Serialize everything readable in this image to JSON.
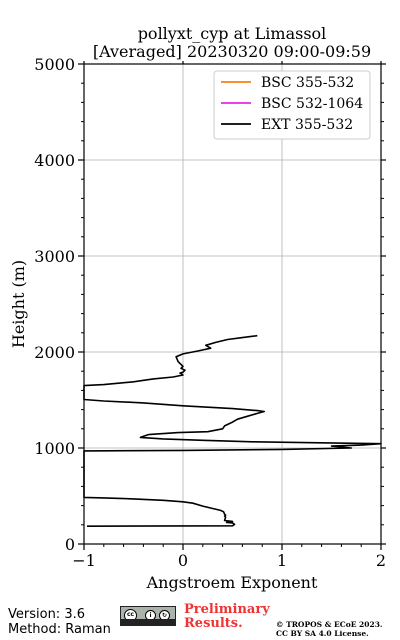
{
  "chart_data": {
    "type": "line",
    "title": "pollyxt_cyp at Limassol",
    "subtitle": "[Averaged] 20230320 09:00-09:59",
    "xlabel": "Angstroem Exponent",
    "ylabel": "Height (m)",
    "xlim": [
      -1,
      2
    ],
    "ylim": [
      0,
      5000
    ],
    "xticks": [
      "−1",
      "0",
      "1",
      "2"
    ],
    "yticks": [
      "0",
      "1000",
      "2000",
      "3000",
      "4000",
      "5000"
    ],
    "grid": true,
    "legend_position": "top-right",
    "series": [
      {
        "name": "BSC 355-532",
        "color": "#ff7f0e",
        "points": []
      },
      {
        "name": "BSC 532-1064",
        "color": "#e826e8",
        "points": []
      },
      {
        "name": "EXT 355-532",
        "color": "#000000",
        "points": [
          [
            -0.97,
            185
          ],
          [
            0.5,
            190
          ],
          [
            0.52,
            205
          ],
          [
            0.5,
            220
          ],
          [
            0.44,
            225
          ],
          [
            0.5,
            235
          ],
          [
            0.42,
            245
          ],
          [
            0.43,
            280
          ],
          [
            0.42,
            290
          ],
          [
            0.43,
            300
          ],
          [
            0.42,
            310
          ],
          [
            0.41,
            335
          ],
          [
            0.38,
            350
          ],
          [
            0.3,
            370
          ],
          [
            0.2,
            395
          ],
          [
            0.1,
            425
          ],
          [
            0.0,
            440
          ],
          [
            -0.2,
            455
          ],
          [
            -0.5,
            470
          ],
          [
            -0.8,
            480
          ],
          [
            -1.0,
            485
          ],
          [
            -1.0,
            970
          ],
          [
            0.0,
            975
          ],
          [
            1.0,
            985
          ],
          [
            1.7,
            1000
          ],
          [
            1.5,
            1020
          ],
          [
            1.8,
            1030
          ],
          [
            2.0,
            1045
          ],
          [
            1.3,
            1055
          ],
          [
            0.7,
            1065
          ],
          [
            0.2,
            1080
          ],
          [
            -0.2,
            1095
          ],
          [
            -0.43,
            1110
          ],
          [
            -0.35,
            1140
          ],
          [
            -0.05,
            1160
          ],
          [
            0.25,
            1170
          ],
          [
            0.4,
            1200
          ],
          [
            0.42,
            1230
          ],
          [
            0.5,
            1270
          ],
          [
            0.55,
            1300
          ],
          [
            0.65,
            1330
          ],
          [
            0.75,
            1360
          ],
          [
            0.82,
            1380
          ],
          [
            0.75,
            1390
          ],
          [
            0.5,
            1410
          ],
          [
            0.0,
            1440
          ],
          [
            -0.4,
            1470
          ],
          [
            -0.8,
            1490
          ],
          [
            -1.0,
            1505
          ],
          [
            -1.0,
            1650
          ],
          [
            -0.8,
            1660
          ],
          [
            -0.5,
            1690
          ],
          [
            -0.3,
            1720
          ],
          [
            -0.1,
            1740
          ],
          [
            0.0,
            1760
          ],
          [
            -0.03,
            1780
          ],
          [
            0.0,
            1790
          ],
          [
            0.02,
            1810
          ],
          [
            -0.02,
            1830
          ],
          [
            0.0,
            1850
          ],
          [
            -0.05,
            1900
          ],
          [
            -0.07,
            1950
          ],
          [
            0.0,
            1980
          ],
          [
            0.15,
            2010
          ],
          [
            0.28,
            2040
          ],
          [
            0.23,
            2070
          ],
          [
            0.33,
            2100
          ],
          [
            0.45,
            2130
          ],
          [
            0.6,
            2150
          ],
          [
            0.75,
            2170
          ]
        ]
      }
    ]
  },
  "footer": {
    "version": "Version: 3.6",
    "method": "Method: Raman",
    "prelim_line1": "Preliminary",
    "prelim_line2": "Results.",
    "license_line1": "© TROPOS & ECoE 2023.",
    "license_line2": "CC BY SA 4.0 License."
  }
}
